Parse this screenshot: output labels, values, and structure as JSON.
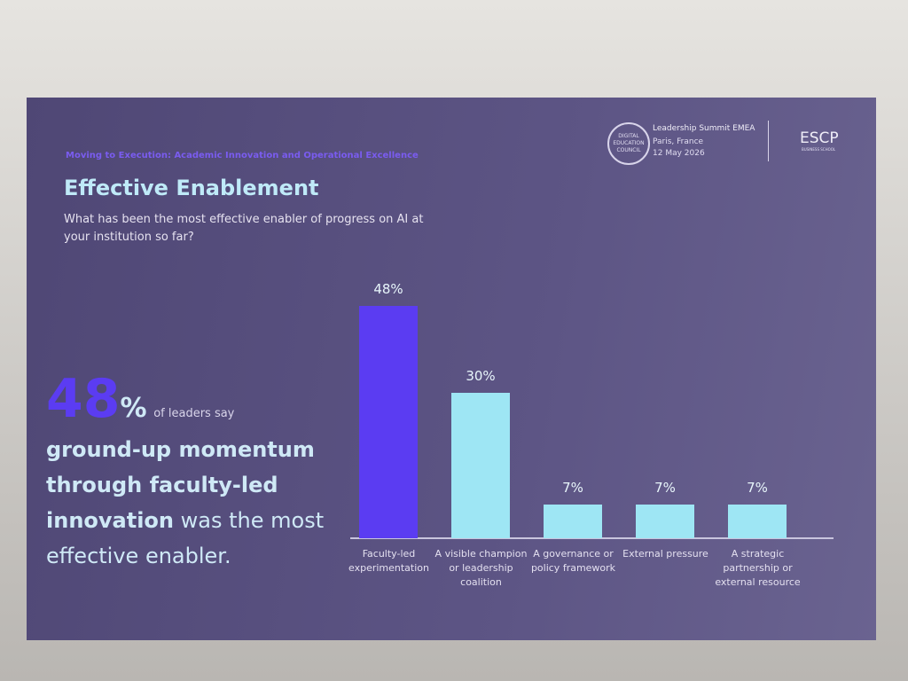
{
  "header": {
    "kicker": "Moving to Execution: Academic Innovation and Operational Excellence",
    "title": "Effective Enablement",
    "question": "What has been the most effective enabler of progress on AI at your institution so far?"
  },
  "logos": {
    "council": "DIGITAL EDUCATION COUNCIL",
    "event": "Leadership Summit EMEA",
    "place": "Paris, France",
    "date": "12 May 2026",
    "school": "ESCP",
    "school_sub": "BUSINESS SCHOOL"
  },
  "callout": {
    "number": "48",
    "unit": "%",
    "lead": "of leaders say",
    "emphasis": "ground-up momentum through faculty-led innovation",
    "rest": "was the most effective enabler."
  },
  "chart_data": {
    "type": "bar",
    "categories": [
      "Faculty-led experimentation",
      "A visible champion or leadership coalition",
      "A governance or policy framework",
      "External pressure",
      "A strategic partnership or external resource"
    ],
    "values": [
      48,
      30,
      7,
      7,
      7
    ],
    "value_labels": [
      "48%",
      "30%",
      "7%",
      "7%",
      "7%"
    ],
    "colors": [
      "#5b3cf2",
      "#9ee6f4",
      "#9ee6f4",
      "#9ee6f4",
      "#9ee6f4"
    ]
  }
}
